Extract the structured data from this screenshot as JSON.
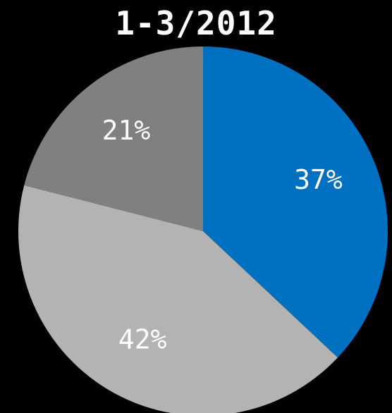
{
  "chart_data": {
    "type": "pie",
    "title": "1-3/2012",
    "start_angle_deg": 0,
    "direction": "clockwise",
    "slices": [
      {
        "label": "37%",
        "value": 37,
        "color": "#0070C0"
      },
      {
        "label": "42%",
        "value": 42,
        "color": "#B3B3B3"
      },
      {
        "label": "21%",
        "value": 21,
        "color": "#808080"
      }
    ]
  },
  "colors": {
    "background": "#000000",
    "title": "#FFFFFF",
    "labels": "#FFFFFF"
  }
}
